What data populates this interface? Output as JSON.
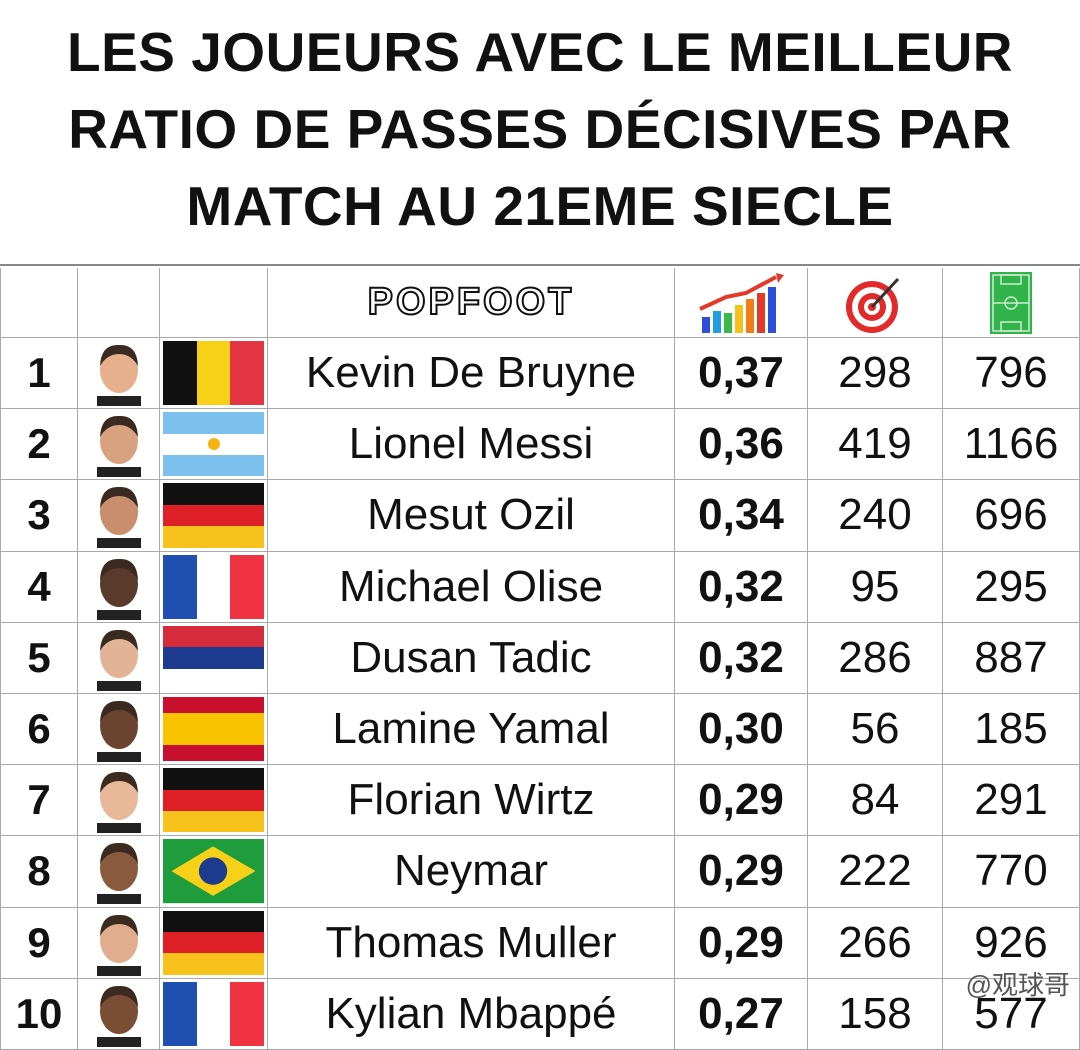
{
  "header": {
    "title": [
      "LES JOUEURS AVEC LE MEILLEUR",
      "RATIO DE PASSES DÉCISIVES PAR",
      "MATCH AU 21EME SIECLE"
    ]
  },
  "table": {
    "logo": "POPFOOT",
    "rows": [
      [
        "1",
        "Kevin De Bruyne",
        "0,37",
        "298",
        "796"
      ],
      [
        "2",
        "Lionel Messi",
        "0,36",
        "419",
        "1166"
      ],
      [
        "3",
        "Mesut Ozil",
        "0,34",
        "240",
        "696"
      ],
      [
        "4",
        "Michael Olise",
        "0,32",
        "95",
        "295"
      ],
      [
        "5",
        "Dusan Tadic",
        "0,32",
        "286",
        "887"
      ],
      [
        "6",
        "Lamine Yamal",
        "0,30",
        "56",
        "185"
      ],
      [
        "7",
        "Florian Wirtz",
        "0,29",
        "84",
        "291"
      ],
      [
        "8",
        "Neymar",
        "0,29",
        "222",
        "770"
      ],
      [
        "9",
        "Thomas Muller",
        "0,29",
        "266",
        "926"
      ],
      [
        "10",
        "Kylian Mbappé",
        "0,27",
        "158",
        "577"
      ]
    ]
  },
  "watermark": "@观球哥"
}
